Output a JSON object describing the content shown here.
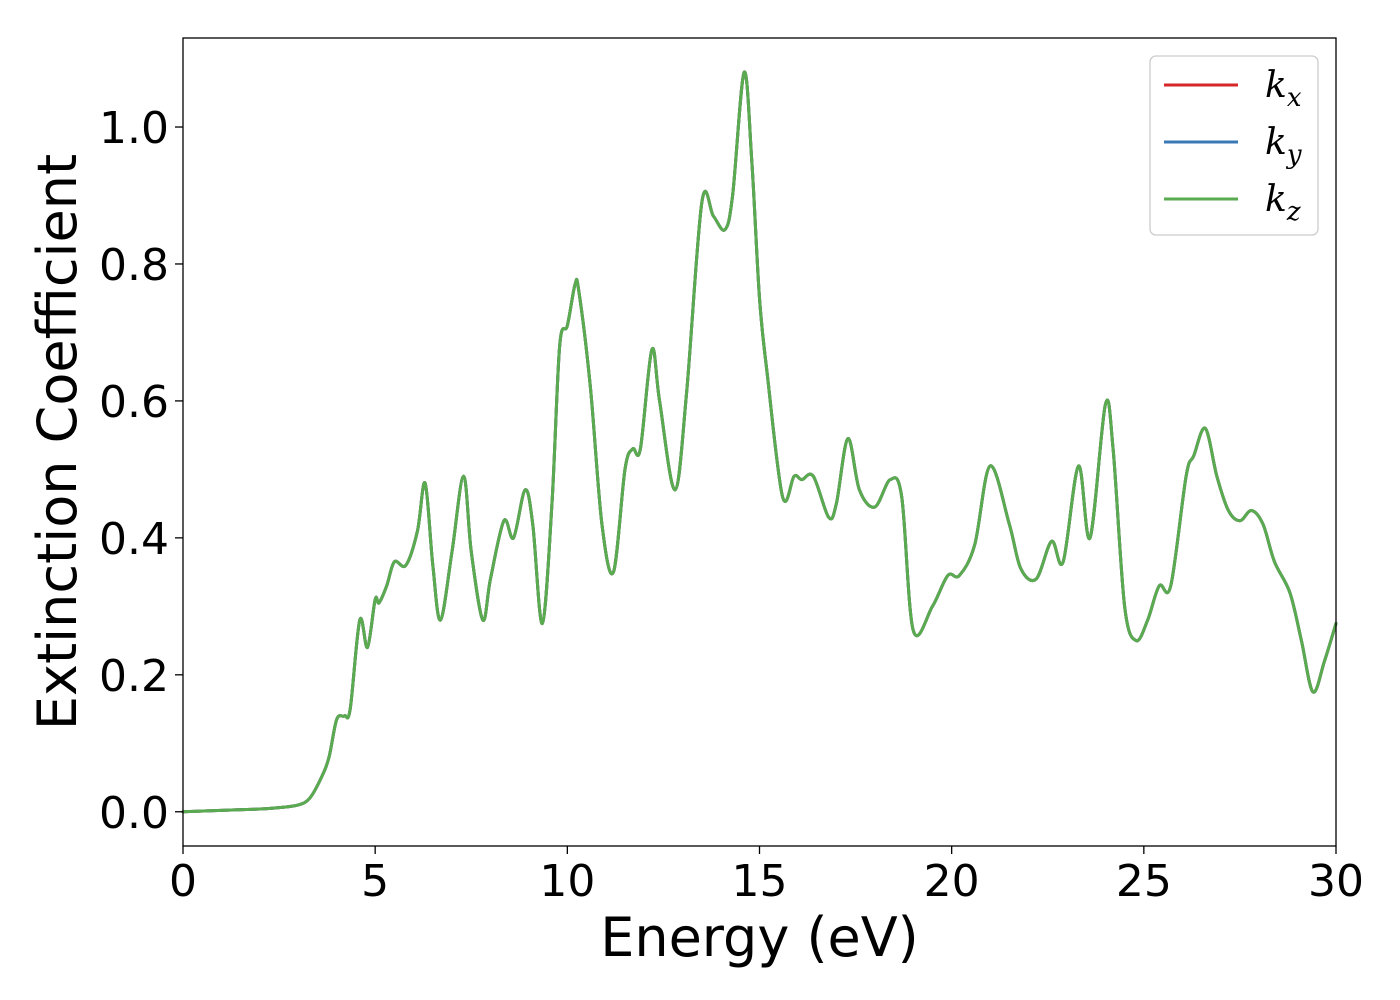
{
  "chart_data": {
    "type": "line",
    "title": "",
    "xlabel": "Energy (eV)",
    "ylabel": "Extinction Coefficient",
    "xlim": [
      0,
      30
    ],
    "ylim": [
      -0.05,
      1.13
    ],
    "xticks": [
      0,
      5,
      10,
      15,
      20,
      25,
      30
    ],
    "xtick_labels": [
      "0",
      "5",
      "10",
      "15",
      "20",
      "25",
      "30"
    ],
    "yticks": [
      0.0,
      0.2,
      0.4,
      0.6,
      0.8,
      1.0
    ],
    "ytick_labels": [
      "0.0",
      "0.2",
      "0.4",
      "0.6",
      "0.8",
      "1.0"
    ],
    "grid": false,
    "legend_position": "top-right",
    "x": [
      0,
      1,
      2,
      2.5,
      3,
      3.3,
      3.6,
      3.8,
      4.0,
      4.2,
      4.35,
      4.6,
      4.8,
      5.0,
      5.1,
      5.3,
      5.5,
      5.8,
      6.1,
      6.3,
      6.5,
      6.7,
      7.0,
      7.3,
      7.5,
      7.8,
      8.0,
      8.35,
      8.6,
      8.9,
      9.1,
      9.35,
      9.6,
      9.8,
      10.0,
      10.2,
      10.3,
      10.6,
      10.9,
      11.2,
      11.5,
      11.7,
      11.9,
      12.2,
      12.4,
      12.8,
      13.1,
      13.5,
      13.8,
      14.1,
      14.3,
      14.6,
      14.8,
      15.0,
      15.2,
      15.6,
      15.9,
      16.1,
      16.4,
      16.8,
      17.0,
      17.3,
      17.6,
      18.0,
      18.4,
      18.7,
      19.0,
      19.5,
      19.9,
      20.2,
      20.6,
      21.0,
      21.5,
      21.8,
      22.2,
      22.6,
      22.9,
      23.3,
      23.6,
      24.0,
      24.2,
      24.5,
      24.8,
      25.1,
      25.4,
      25.7,
      26.1,
      26.3,
      26.6,
      26.9,
      27.2,
      27.5,
      27.8,
      28.1,
      28.4,
      28.8,
      29.1,
      29.4,
      29.7,
      30.0
    ],
    "series": [
      {
        "name": "k",
        "sub": "x",
        "color": "#d62728",
        "values": [
          0.0,
          0.002,
          0.004,
          0.006,
          0.01,
          0.02,
          0.05,
          0.08,
          0.135,
          0.14,
          0.15,
          0.28,
          0.24,
          0.31,
          0.305,
          0.33,
          0.365,
          0.36,
          0.41,
          0.48,
          0.36,
          0.28,
          0.38,
          0.49,
          0.38,
          0.28,
          0.34,
          0.425,
          0.4,
          0.47,
          0.42,
          0.275,
          0.45,
          0.68,
          0.71,
          0.77,
          0.76,
          0.62,
          0.42,
          0.35,
          0.5,
          0.53,
          0.53,
          0.675,
          0.6,
          0.47,
          0.61,
          0.89,
          0.87,
          0.85,
          0.9,
          1.08,
          0.95,
          0.75,
          0.64,
          0.46,
          0.49,
          0.485,
          0.49,
          0.43,
          0.45,
          0.545,
          0.47,
          0.445,
          0.485,
          0.46,
          0.265,
          0.3,
          0.345,
          0.345,
          0.39,
          0.505,
          0.42,
          0.355,
          0.34,
          0.395,
          0.365,
          0.505,
          0.4,
          0.595,
          0.53,
          0.3,
          0.25,
          0.28,
          0.33,
          0.33,
          0.49,
          0.52,
          0.56,
          0.49,
          0.44,
          0.425,
          0.44,
          0.42,
          0.365,
          0.32,
          0.25,
          0.175,
          0.22,
          0.275
        ]
      },
      {
        "name": "k",
        "sub": "y",
        "color": "#3a78b8",
        "values": [
          0.0,
          0.002,
          0.004,
          0.006,
          0.01,
          0.02,
          0.05,
          0.08,
          0.135,
          0.14,
          0.15,
          0.28,
          0.24,
          0.31,
          0.305,
          0.33,
          0.365,
          0.36,
          0.41,
          0.48,
          0.36,
          0.28,
          0.38,
          0.49,
          0.38,
          0.28,
          0.34,
          0.425,
          0.4,
          0.47,
          0.42,
          0.275,
          0.45,
          0.68,
          0.71,
          0.77,
          0.76,
          0.62,
          0.42,
          0.35,
          0.5,
          0.53,
          0.53,
          0.675,
          0.6,
          0.47,
          0.61,
          0.89,
          0.87,
          0.85,
          0.9,
          1.08,
          0.95,
          0.75,
          0.64,
          0.46,
          0.49,
          0.485,
          0.49,
          0.43,
          0.45,
          0.545,
          0.47,
          0.445,
          0.485,
          0.46,
          0.265,
          0.3,
          0.345,
          0.345,
          0.39,
          0.505,
          0.42,
          0.355,
          0.34,
          0.395,
          0.365,
          0.505,
          0.4,
          0.595,
          0.53,
          0.3,
          0.25,
          0.28,
          0.33,
          0.33,
          0.49,
          0.52,
          0.56,
          0.49,
          0.44,
          0.425,
          0.44,
          0.42,
          0.365,
          0.32,
          0.25,
          0.175,
          0.22,
          0.275
        ]
      },
      {
        "name": "k",
        "sub": "z",
        "color": "#5aab4f",
        "values": [
          0.0,
          0.002,
          0.004,
          0.006,
          0.01,
          0.02,
          0.05,
          0.08,
          0.135,
          0.14,
          0.15,
          0.28,
          0.24,
          0.31,
          0.305,
          0.33,
          0.365,
          0.36,
          0.41,
          0.48,
          0.36,
          0.28,
          0.38,
          0.49,
          0.38,
          0.28,
          0.34,
          0.425,
          0.4,
          0.47,
          0.42,
          0.275,
          0.45,
          0.68,
          0.71,
          0.77,
          0.76,
          0.62,
          0.42,
          0.35,
          0.5,
          0.53,
          0.53,
          0.675,
          0.6,
          0.47,
          0.61,
          0.89,
          0.87,
          0.85,
          0.9,
          1.08,
          0.95,
          0.75,
          0.64,
          0.46,
          0.49,
          0.485,
          0.49,
          0.43,
          0.45,
          0.545,
          0.47,
          0.445,
          0.485,
          0.46,
          0.265,
          0.3,
          0.345,
          0.345,
          0.39,
          0.505,
          0.42,
          0.355,
          0.34,
          0.395,
          0.365,
          0.505,
          0.4,
          0.595,
          0.53,
          0.3,
          0.25,
          0.28,
          0.33,
          0.33,
          0.49,
          0.52,
          0.56,
          0.49,
          0.44,
          0.425,
          0.44,
          0.42,
          0.365,
          0.32,
          0.25,
          0.175,
          0.22,
          0.275
        ]
      }
    ]
  }
}
